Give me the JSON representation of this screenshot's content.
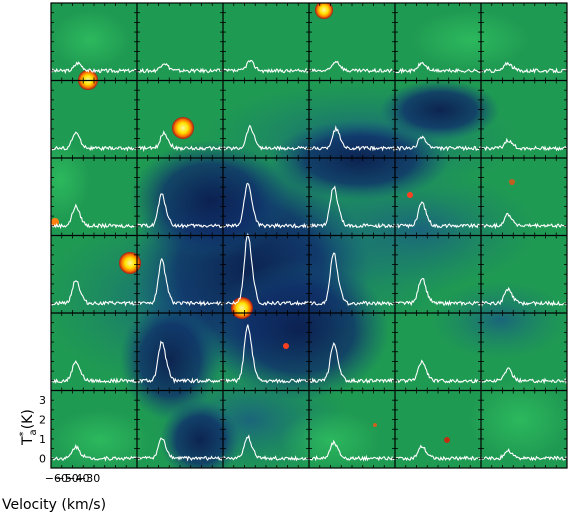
{
  "chart_data": {
    "type": "line",
    "description_kind": "spectral-line grid map overlaid on an image",
    "grid": {
      "columns": 6,
      "rows": 6
    },
    "xlabel": "Velocity (km/s)",
    "ylabel": "T",
    "ylabel_sup": "*",
    "ylabel_sub": "a",
    "ylabel_unit": "(K)",
    "x_ticks": [
      "−60",
      "−50",
      "−40",
      "−30"
    ],
    "y_ticks": [
      "0",
      "1",
      "2",
      "3"
    ],
    "xlim": [
      -65,
      15
    ],
    "ylim": [
      -0.5,
      3.5
    ],
    "spectrum_color": "#ffffff",
    "background": {
      "base_color": "#1f9a52",
      "dark_color": "#0b1e4f",
      "hot_color": "#ffe400"
    },
    "panels": [
      {
        "row": 0,
        "col": 0,
        "peak_v": -40,
        "peak_T": 0.4
      },
      {
        "row": 0,
        "col": 1,
        "peak_v": -40,
        "peak_T": 0.4
      },
      {
        "row": 0,
        "col": 2,
        "peak_v": -40,
        "peak_T": 0.5
      },
      {
        "row": 0,
        "col": 3,
        "peak_v": -40,
        "peak_T": 0.5
      },
      {
        "row": 0,
        "col": 4,
        "peak_v": -40,
        "peak_T": 0.4
      },
      {
        "row": 0,
        "col": 5,
        "peak_v": -40,
        "peak_T": 0.4
      },
      {
        "row": 1,
        "col": 0,
        "peak_v": -42,
        "peak_T": 0.8
      },
      {
        "row": 1,
        "col": 1,
        "peak_v": -40,
        "peak_T": 0.8
      },
      {
        "row": 1,
        "col": 2,
        "peak_v": -40,
        "peak_T": 1.1
      },
      {
        "row": 1,
        "col": 3,
        "peak_v": -40,
        "peak_T": 1.0
      },
      {
        "row": 1,
        "col": 4,
        "peak_v": -40,
        "peak_T": 0.6
      },
      {
        "row": 1,
        "col": 5,
        "peak_v": -40,
        "peak_T": 0.4
      },
      {
        "row": 2,
        "col": 0,
        "peak_v": -42,
        "peak_T": 1.0
      },
      {
        "row": 2,
        "col": 1,
        "peak_v": -42,
        "peak_T": 1.6
      },
      {
        "row": 2,
        "col": 2,
        "peak_v": -42,
        "peak_T": 2.2
      },
      {
        "row": 2,
        "col": 3,
        "peak_v": -42,
        "peak_T": 2.0
      },
      {
        "row": 2,
        "col": 4,
        "peak_v": -40,
        "peak_T": 1.2
      },
      {
        "row": 2,
        "col": 5,
        "peak_v": -40,
        "peak_T": 0.6
      },
      {
        "row": 3,
        "col": 0,
        "peak_v": -42,
        "peak_T": 1.2
      },
      {
        "row": 3,
        "col": 1,
        "peak_v": -42,
        "peak_T": 2.2
      },
      {
        "row": 3,
        "col": 2,
        "peak_v": -42,
        "peak_T": 3.5
      },
      {
        "row": 3,
        "col": 3,
        "peak_v": -42,
        "peak_T": 2.6
      },
      {
        "row": 3,
        "col": 4,
        "peak_v": -40,
        "peak_T": 1.3
      },
      {
        "row": 3,
        "col": 5,
        "peak_v": -40,
        "peak_T": 0.7
      },
      {
        "row": 4,
        "col": 0,
        "peak_v": -42,
        "peak_T": 1.0
      },
      {
        "row": 4,
        "col": 1,
        "peak_v": -42,
        "peak_T": 2.0
      },
      {
        "row": 4,
        "col": 2,
        "peak_v": -42,
        "peak_T": 2.8
      },
      {
        "row": 4,
        "col": 3,
        "peak_v": -42,
        "peak_T": 1.9
      },
      {
        "row": 4,
        "col": 4,
        "peak_v": -40,
        "peak_T": 1.0
      },
      {
        "row": 4,
        "col": 5,
        "peak_v": -40,
        "peak_T": 0.6
      },
      {
        "row": 5,
        "col": 0,
        "peak_v": -42,
        "peak_T": 0.6
      },
      {
        "row": 5,
        "col": 1,
        "peak_v": -42,
        "peak_T": 1.0
      },
      {
        "row": 5,
        "col": 2,
        "peak_v": -42,
        "peak_T": 1.1
      },
      {
        "row": 5,
        "col": 3,
        "peak_v": -42,
        "peak_T": 0.8
      },
      {
        "row": 5,
        "col": 4,
        "peak_v": -40,
        "peak_T": 0.6
      },
      {
        "row": 5,
        "col": 5,
        "peak_v": -40,
        "peak_T": 0.4
      }
    ]
  }
}
